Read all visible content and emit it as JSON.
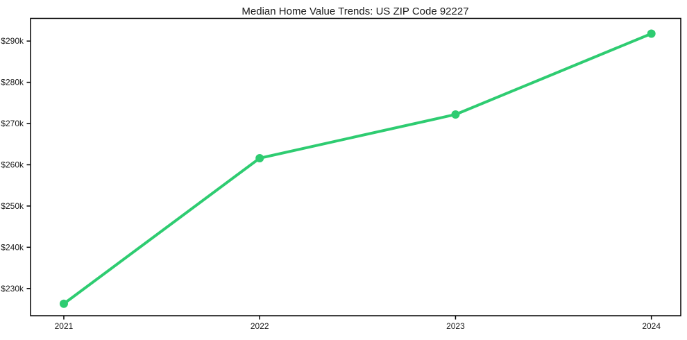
{
  "window": {
    "background": "#ffffff"
  },
  "chart_data": {
    "type": "line",
    "title": "Median Home Value Trends: US ZIP Code 92227",
    "x": [
      2021,
      2022,
      2023,
      2024
    ],
    "series": [
      {
        "name": "median-home-value",
        "values": [
          226300,
          261600,
          272200,
          291800
        ],
        "color": "#2ecc71",
        "marker": "circle"
      }
    ],
    "xlabel": "",
    "ylabel": "",
    "xlim": [
      2020.83,
      2024.15
    ],
    "ylim": [
      223400,
      295500
    ],
    "xticks": [
      2021,
      2022,
      2023,
      2024
    ],
    "xtick_labels": [
      "2021",
      "2022",
      "2023",
      "2024"
    ],
    "yticks": [
      230000,
      240000,
      250000,
      260000,
      270000,
      280000,
      290000
    ],
    "ytick_labels": [
      "$230k",
      "$240k",
      "$250k",
      "$260k",
      "$270k",
      "$280k",
      "$290k"
    ],
    "grid": false,
    "legend": false,
    "axis_color": "#000000",
    "tick_label_color": "#1a1a1a",
    "line_width": 4,
    "marker_radius": 6
  }
}
